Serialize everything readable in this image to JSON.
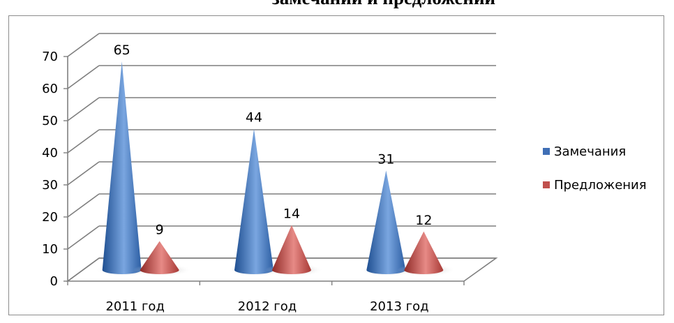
{
  "chart_data": {
    "type": "bar",
    "title": "замечаний и предложений",
    "categories": [
      "2011 год",
      "2012 год",
      "2013 год"
    ],
    "series": [
      {
        "name": "Замечания",
        "values": [
          65,
          44,
          31
        ],
        "color": "#3f6fb5"
      },
      {
        "name": "Предложения",
        "values": [
          9,
          14,
          12
        ],
        "color": "#c0504d"
      }
    ],
    "y_ticks": [
      "0",
      "10",
      "20",
      "30",
      "40",
      "50",
      "60",
      "70"
    ],
    "ylim": [
      0,
      70
    ],
    "grid": true,
    "legend_position": "right",
    "bar_shape": "cone"
  }
}
